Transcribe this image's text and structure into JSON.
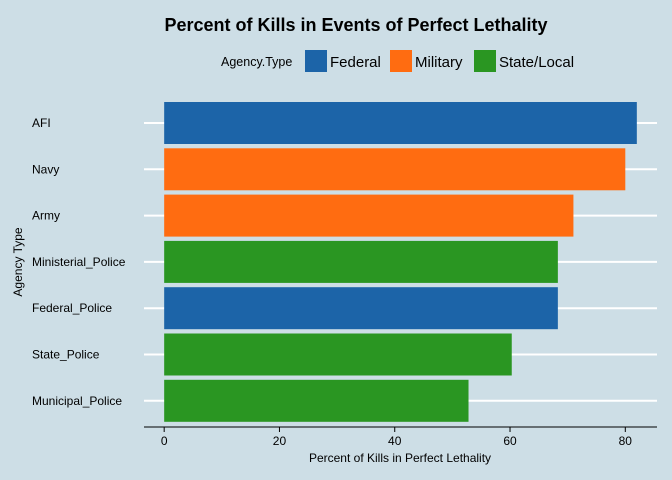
{
  "chart_data": {
    "type": "bar",
    "orientation": "horizontal",
    "title": "Percent of Kills in Events of Perfect Lethality",
    "xlabel": "Percent of Kills in Perfect Lethality",
    "ylabel": "Agency Type",
    "xlim": [
      -3.5,
      85.5
    ],
    "xticks": [
      0,
      20,
      40,
      60,
      80
    ],
    "xtick_labels": [
      "0",
      "20",
      "40",
      "60",
      "80"
    ],
    "grid": "horizontal-white",
    "legend": {
      "title": "Agency.Type",
      "placement": "top",
      "entries": [
        {
          "label": "Federal",
          "color": "#1c64a8"
        },
        {
          "label": "Military",
          "color": "#ff6c11"
        },
        {
          "label": "State/Local",
          "color": "#2a9622"
        }
      ]
    },
    "bars": [
      {
        "category": "AFI",
        "value": 82.0,
        "group": "Federal"
      },
      {
        "category": "Navy",
        "value": 80.0,
        "group": "Military"
      },
      {
        "category": "Army",
        "value": 71.0,
        "group": "Military"
      },
      {
        "category": "Ministerial_Police",
        "value": 68.3,
        "group": "State/Local"
      },
      {
        "category": "Federal_Police",
        "value": 68.3,
        "group": "Federal"
      },
      {
        "category": "State_Police",
        "value": 60.3,
        "group": "State/Local"
      },
      {
        "category": "Municipal_Police",
        "value": 52.8,
        "group": "State/Local"
      }
    ]
  }
}
